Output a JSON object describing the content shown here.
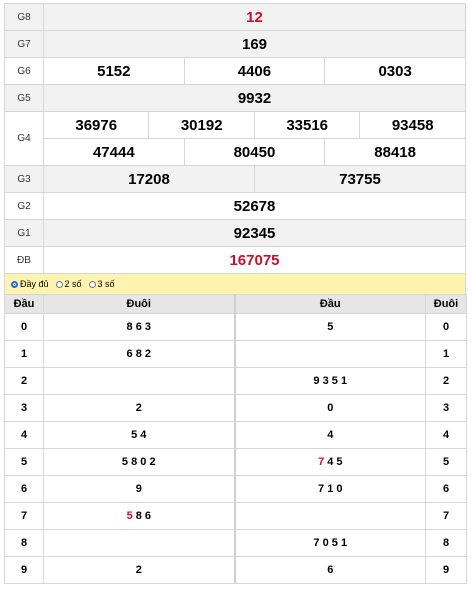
{
  "prizes": {
    "g8": {
      "label": "G8",
      "numbers": [
        "12"
      ]
    },
    "g7": {
      "label": "G7",
      "numbers": [
        "169"
      ]
    },
    "g6": {
      "label": "G6",
      "numbers": [
        "5152",
        "4406",
        "0303"
      ]
    },
    "g5": {
      "label": "G5",
      "numbers": [
        "9932"
      ]
    },
    "g4": {
      "label": "G4",
      "numbers": [
        "36976",
        "30192",
        "33516",
        "93458",
        "47444",
        "80450",
        "88418"
      ]
    },
    "g3": {
      "label": "G3",
      "numbers": [
        "17208",
        "73755"
      ]
    },
    "g2": {
      "label": "G2",
      "numbers": [
        "52678"
      ]
    },
    "g1": {
      "label": "G1",
      "numbers": [
        "92345"
      ]
    },
    "db": {
      "label": "ĐB",
      "numbers": [
        "167075"
      ]
    }
  },
  "options": [
    {
      "label": "Đầy đủ",
      "checked": true
    },
    {
      "label": "2 số",
      "checked": false
    },
    {
      "label": "3 số",
      "checked": false
    }
  ],
  "loto": {
    "headers": {
      "dau_left": "Đầu",
      "duoi_left": "Đuôi",
      "dau_right": "Đầu",
      "duoi_right": "Đuôi"
    },
    "rows": [
      {
        "key": "0",
        "tails": "8 6 3",
        "heads": "5",
        "key_right": "0"
      },
      {
        "key": "1",
        "tails": "6 8 2",
        "heads": "",
        "key_right": "1"
      },
      {
        "key": "2",
        "tails": "",
        "heads": "9 3 5 1",
        "key_right": "2"
      },
      {
        "key": "3",
        "tails": "2",
        "heads": "0",
        "key_right": "3"
      },
      {
        "key": "4",
        "tails": "5 4",
        "heads": "4",
        "key_right": "4"
      },
      {
        "key": "5",
        "tails": "5 8 0 2",
        "heads": "7 4 5",
        "key_right": "5",
        "heads_highlight_index": 0
      },
      {
        "key": "6",
        "tails": "9",
        "heads": "7 1 0",
        "key_right": "6"
      },
      {
        "key": "7",
        "tails": "5 8 6",
        "heads": "",
        "key_right": "7",
        "tails_highlight_index": 0
      },
      {
        "key": "8",
        "tails": "",
        "heads": "7 0 5 1",
        "key_right": "8"
      },
      {
        "key": "9",
        "tails": "2",
        "heads": "6",
        "key_right": "9"
      }
    ]
  },
  "colors": {
    "accent_red": "#c8102e",
    "option_bar": "#fff3b0"
  }
}
